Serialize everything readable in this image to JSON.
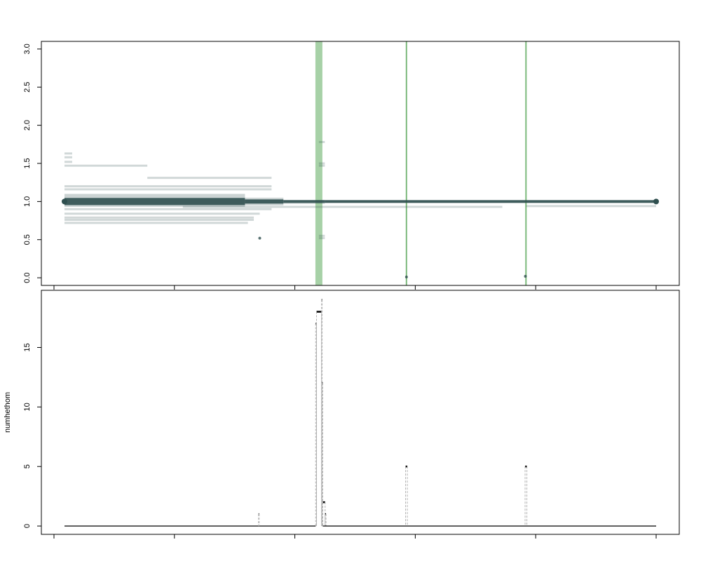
{
  "chart_data": [
    {
      "type": "segment",
      "title": "",
      "xlabel": "",
      "ylabel": "",
      "ylim": [
        -0.1,
        3.1
      ],
      "yticks": [
        0.0,
        0.5,
        1.0,
        1.5,
        2.0,
        2.5,
        3.0
      ],
      "ytick_labels": [
        "0.0",
        "0.5",
        "1.0",
        "1.5",
        "2.0",
        "2.5",
        "3.0"
      ],
      "xlim": [
        0,
        1
      ],
      "xticks": [
        0.0,
        0.2,
        0.4,
        0.6,
        0.8,
        1.0
      ],
      "xtick_labels": [
        "",
        "",
        "",
        "",
        "",
        ""
      ],
      "grid": false,
      "colors": {
        "segments": "#2f4f4f",
        "highlight": "#98c998",
        "highlight_line": "#6fb36f"
      },
      "highlight_regions": [
        {
          "x_start": 0.4241,
          "x_end": 0.4359
        },
        {
          "x_start": 0.5768,
          "x_end": 0.579
        },
        {
          "x_start": 0.7788,
          "x_end": 0.781
        }
      ],
      "dense_segments": [
        {
          "x_start": 0.0,
          "x_end": 0.305,
          "y_low": 0.93,
          "y_high": 1.1
        },
        {
          "x_start": 0.305,
          "x_end": 0.37,
          "y_low": 0.95,
          "y_high": 1.05
        },
        {
          "x_start": 0.37,
          "x_end": 0.44,
          "y_low": 0.97,
          "y_high": 1.02
        },
        {
          "x_start": 0.44,
          "x_end": 1.0,
          "y_low": 0.985,
          "y_high": 1.015
        }
      ],
      "segments": [
        {
          "x_start": 0.0,
          "x_end": 0.013,
          "y": 1.63
        },
        {
          "x_start": 0.0,
          "x_end": 0.013,
          "y": 1.58
        },
        {
          "x_start": 0.0,
          "x_end": 0.013,
          "y": 1.52
        },
        {
          "x_start": 0.0,
          "x_end": 0.14,
          "y": 1.47
        },
        {
          "x_start": 0.14,
          "x_end": 0.35,
          "y": 1.31
        },
        {
          "x_start": 0.0,
          "x_end": 0.35,
          "y": 1.2
        },
        {
          "x_start": 0.0,
          "x_end": 0.35,
          "y": 1.16
        },
        {
          "x_start": 0.0,
          "x_end": 0.35,
          "y": 0.9
        },
        {
          "x_start": 0.0,
          "x_end": 0.33,
          "y": 0.84
        },
        {
          "x_start": 0.0,
          "x_end": 0.32,
          "y": 0.79
        },
        {
          "x_start": 0.0,
          "x_end": 0.32,
          "y": 0.76
        },
        {
          "x_start": 0.0,
          "x_end": 0.31,
          "y": 0.72
        },
        {
          "x_start": 0.2,
          "x_end": 0.74,
          "y": 0.93
        },
        {
          "x_start": 0.43,
          "x_end": 0.44,
          "y": 0.52
        },
        {
          "x_start": 0.43,
          "x_end": 0.44,
          "y": 0.55
        },
        {
          "x_start": 0.43,
          "x_end": 0.44,
          "y": 1.47
        },
        {
          "x_start": 0.43,
          "x_end": 0.44,
          "y": 1.5
        },
        {
          "x_start": 0.43,
          "x_end": 0.44,
          "y": 1.78
        },
        {
          "x_start": 0.78,
          "x_end": 0.89,
          "y": 0.94
        },
        {
          "x_start": 0.89,
          "x_end": 1.0,
          "y": 0.94
        }
      ],
      "points": [
        {
          "x": 0.578,
          "y": 0.01
        },
        {
          "x": 0.779,
          "y": 0.02
        },
        {
          "x": 0.33,
          "y": 0.52
        }
      ]
    },
    {
      "type": "segment",
      "title": "",
      "xlabel": "",
      "ylabel": "numhethom",
      "ylim": [
        -0.7,
        19.8
      ],
      "yticks": [
        0,
        5,
        10,
        15
      ],
      "ytick_labels": [
        "0",
        "5",
        "10",
        "15"
      ],
      "xlim": [
        0,
        1
      ],
      "xticks": [
        0.0,
        0.2,
        0.4,
        0.6,
        0.8,
        1.0
      ],
      "xtick_labels": [
        "",
        "",
        "",
        "",
        "",
        ""
      ],
      "grid": false,
      "colors": {
        "segments": "#000000",
        "drop_lines": "#b0b0b0"
      },
      "segments": [
        {
          "x_start": 0.0,
          "x_end": 0.4245,
          "y": 0
        },
        {
          "x_start": 0.328,
          "x_end": 0.329,
          "y": 1
        },
        {
          "x_start": 0.4245,
          "x_end": 0.426,
          "y": 17
        },
        {
          "x_start": 0.426,
          "x_end": 0.4345,
          "y": 18
        },
        {
          "x_start": 0.4345,
          "x_end": 0.4355,
          "y": 19
        },
        {
          "x_start": 0.4355,
          "x_end": 0.4365,
          "y": 12
        },
        {
          "x_start": 0.4365,
          "x_end": 0.4405,
          "y": 2
        },
        {
          "x_start": 0.4405,
          "x_end": 0.442,
          "y": 1
        },
        {
          "x_start": 0.4365,
          "x_end": 1.0,
          "y": 0
        },
        {
          "x_start": 0.5765,
          "x_end": 0.5795,
          "y": 5
        },
        {
          "x_start": 0.7785,
          "x_end": 0.7815,
          "y": 5
        }
      ]
    }
  ]
}
